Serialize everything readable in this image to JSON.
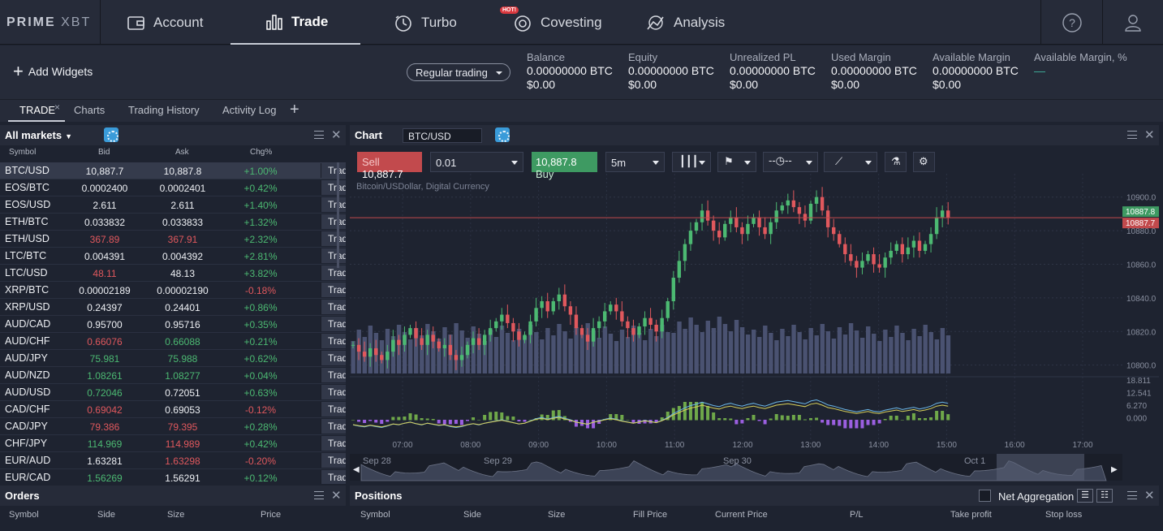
{
  "brand": {
    "logo_text_a": "PRIME",
    "logo_text_b": "XBT"
  },
  "nav": {
    "items": [
      {
        "label": "Account"
      },
      {
        "label": "Trade"
      },
      {
        "label": "Turbo"
      },
      {
        "label": "Covesting"
      },
      {
        "label": "Analysis"
      }
    ],
    "hot_badge": "HOT!"
  },
  "widgets": {
    "add_label": "Add Widgets",
    "mode": "Regular trading"
  },
  "stats": [
    {
      "label": "Balance",
      "btc": "0.00000000 BTC",
      "usd": "$0.00"
    },
    {
      "label": "Equity",
      "btc": "0.00000000 BTC",
      "usd": "$0.00"
    },
    {
      "label": "Unrealized PL",
      "btc": "0.00000000 BTC",
      "usd": "$0.00"
    },
    {
      "label": "Used Margin",
      "btc": "0.00000000 BTC",
      "usd": "$0.00"
    },
    {
      "label": "Available Margin",
      "btc": "0.00000000 BTC",
      "usd": "$0.00"
    },
    {
      "label": "Available Margin, %",
      "btc": "—",
      "usd": ""
    }
  ],
  "tabs": [
    "TRADE",
    "Charts",
    "Trading History",
    "Activity Log"
  ],
  "markets": {
    "title": "All markets",
    "columns": [
      "Symbol",
      "Bid",
      "Ask",
      "Chg%"
    ],
    "trade_label": "Trade",
    "rows": [
      {
        "symbol": "BTC/USD",
        "bid": "10,887.7",
        "ask": "10,887.8",
        "chg": "+1.00%",
        "bc": "wh",
        "ac": "wh",
        "cc": "up"
      },
      {
        "symbol": "EOS/BTC",
        "bid": "0.0002400",
        "ask": "0.0002401",
        "chg": "+0.42%",
        "bc": "wh",
        "ac": "wh",
        "cc": "up"
      },
      {
        "symbol": "EOS/USD",
        "bid": "2.611",
        "ask": "2.611",
        "chg": "+1.40%",
        "bc": "wh",
        "ac": "wh",
        "cc": "up"
      },
      {
        "symbol": "ETH/BTC",
        "bid": "0.033832",
        "ask": "0.033833",
        "chg": "+1.32%",
        "bc": "wh",
        "ac": "wh",
        "cc": "up"
      },
      {
        "symbol": "ETH/USD",
        "bid": "367.89",
        "ask": "367.91",
        "chg": "+2.32%",
        "bc": "dn",
        "ac": "dn",
        "cc": "up"
      },
      {
        "symbol": "LTC/BTC",
        "bid": "0.004391",
        "ask": "0.004392",
        "chg": "+2.81%",
        "bc": "wh",
        "ac": "wh",
        "cc": "up"
      },
      {
        "symbol": "LTC/USD",
        "bid": "48.11",
        "ask": "48.13",
        "chg": "+3.82%",
        "bc": "dn",
        "ac": "wh",
        "cc": "up"
      },
      {
        "symbol": "XRP/BTC",
        "bid": "0.00002189",
        "ask": "0.00002190",
        "chg": "-0.18%",
        "bc": "wh",
        "ac": "wh",
        "cc": "dn"
      },
      {
        "symbol": "XRP/USD",
        "bid": "0.24397",
        "ask": "0.24401",
        "chg": "+0.86%",
        "bc": "wh",
        "ac": "wh",
        "cc": "up"
      },
      {
        "symbol": "AUD/CAD",
        "bid": "0.95700",
        "ask": "0.95716",
        "chg": "+0.35%",
        "bc": "wh",
        "ac": "wh",
        "cc": "up"
      },
      {
        "symbol": "AUD/CHF",
        "bid": "0.66076",
        "ask": "0.66088",
        "chg": "+0.21%",
        "bc": "dn",
        "ac": "up",
        "cc": "up"
      },
      {
        "symbol": "AUD/JPY",
        "bid": "75.981",
        "ask": "75.988",
        "chg": "+0.62%",
        "bc": "up",
        "ac": "up",
        "cc": "up"
      },
      {
        "symbol": "AUD/NZD",
        "bid": "1.08261",
        "ask": "1.08277",
        "chg": "+0.04%",
        "bc": "up",
        "ac": "up",
        "cc": "up"
      },
      {
        "symbol": "AUD/USD",
        "bid": "0.72046",
        "ask": "0.72051",
        "chg": "+0.63%",
        "bc": "up",
        "ac": "wh",
        "cc": "up"
      },
      {
        "symbol": "CAD/CHF",
        "bid": "0.69042",
        "ask": "0.69053",
        "chg": "-0.12%",
        "bc": "dn",
        "ac": "wh",
        "cc": "dn"
      },
      {
        "symbol": "CAD/JPY",
        "bid": "79.386",
        "ask": "79.395",
        "chg": "+0.28%",
        "bc": "dn",
        "ac": "dn",
        "cc": "up"
      },
      {
        "symbol": "CHF/JPY",
        "bid": "114.969",
        "ask": "114.989",
        "chg": "+0.42%",
        "bc": "up",
        "ac": "dn",
        "cc": "up"
      },
      {
        "symbol": "EUR/AUD",
        "bid": "1.63281",
        "ask": "1.63298",
        "chg": "-0.20%",
        "bc": "wh",
        "ac": "dn",
        "cc": "dn"
      },
      {
        "symbol": "EUR/CAD",
        "bid": "1.56269",
        "ask": "1.56291",
        "chg": "+0.12%",
        "bc": "up",
        "ac": "wh",
        "cc": "up"
      }
    ]
  },
  "chart": {
    "title": "Chart",
    "symbol": "BTC/USD",
    "sell_label": "Sell",
    "sell_price": "10,887.7",
    "qty": "0.01",
    "buy_price": "10,887.8",
    "buy_label": "Buy",
    "interval": "5m",
    "description": "Bitcoin/USDollar, Digital Currency",
    "price_ticks": [
      "10900.0",
      "10880.0",
      "10860.0",
      "10840.0",
      "10820.0",
      "10800.0"
    ],
    "ask_tag": "10887.8",
    "bid_tag": "10887.7",
    "osc_ticks": [
      "18.811",
      "12.541",
      "6.270",
      "0.000"
    ],
    "time_ticks": [
      "07:00",
      "08:00",
      "09:00",
      "10:00",
      "11:00",
      "12:00",
      "13:00",
      "14:00",
      "15:00",
      "16:00",
      "17:00"
    ],
    "nav_dates": [
      "Sep 28",
      "Sep 29",
      "Sep 30",
      "Oct 1"
    ],
    "colors": {
      "up": "#4cb972",
      "down": "#e0585d",
      "volume": "#4a5271"
    }
  },
  "chart_data": {
    "type": "candlestick",
    "title": "Bitcoin/USDollar, Digital Currency",
    "x": [
      "06:30",
      "06:35",
      "06:40",
      "06:45",
      "06:50",
      "06:55",
      "07:00",
      "07:05",
      "07:10",
      "07:15",
      "07:20",
      "07:25",
      "07:30",
      "07:35",
      "07:40",
      "07:45",
      "07:50",
      "07:55",
      "08:00",
      "08:05",
      "08:10",
      "08:15",
      "08:20",
      "08:25",
      "08:30",
      "08:35",
      "08:40",
      "08:45",
      "08:50",
      "08:55",
      "09:00",
      "09:05",
      "09:10",
      "09:15",
      "09:20",
      "09:25",
      "09:30",
      "09:35",
      "09:40",
      "09:45",
      "09:50",
      "09:55",
      "10:00",
      "10:05",
      "10:10",
      "10:15",
      "10:20",
      "10:25",
      "10:30",
      "10:35",
      "10:40",
      "10:45",
      "10:50",
      "10:55",
      "11:00",
      "11:05",
      "11:10",
      "11:15",
      "11:20",
      "11:25",
      "11:30",
      "11:35",
      "11:40",
      "11:45",
      "11:50",
      "11:55",
      "12:00",
      "12:05",
      "12:10",
      "12:15",
      "12:20",
      "12:25",
      "12:30",
      "12:35",
      "12:40",
      "12:45",
      "12:50",
      "12:55",
      "13:00",
      "13:05",
      "13:10",
      "13:15",
      "13:20",
      "13:25",
      "13:30",
      "13:35",
      "13:40",
      "13:45",
      "13:50",
      "13:55",
      "14:00",
      "14:05",
      "14:10",
      "14:15",
      "14:20",
      "14:25",
      "14:30",
      "14:35",
      "14:40",
      "14:45",
      "14:50",
      "14:55",
      "15:00",
      "15:05",
      "15:10"
    ],
    "close": [
      10812,
      10808,
      10805,
      10810,
      10806,
      10803,
      10808,
      10815,
      10812,
      10818,
      10822,
      10816,
      10812,
      10818,
      10814,
      10810,
      10812,
      10806,
      10803,
      10806,
      10812,
      10816,
      10812,
      10818,
      10822,
      10826,
      10830,
      10825,
      10820,
      10815,
      10818,
      10826,
      10834,
      10838,
      10832,
      10838,
      10842,
      10835,
      10830,
      10822,
      10818,
      10814,
      10822,
      10826,
      10832,
      10836,
      10832,
      10826,
      10822,
      10818,
      10823,
      10828,
      10824,
      10820,
      10828,
      10838,
      10852,
      10862,
      10872,
      10880,
      10885,
      10892,
      10886,
      10880,
      10876,
      10884,
      10888,
      10882,
      10878,
      10884,
      10888,
      10882,
      10878,
      10885,
      10892,
      10895,
      10898,
      10894,
      10890,
      10886,
      10896,
      10900,
      10892,
      10882,
      10878,
      10872,
      10866,
      10862,
      10858,
      10862,
      10866,
      10860,
      10858,
      10864,
      10868,
      10872,
      10866,
      10870,
      10874,
      10868,
      10872,
      10878,
      10888,
      10892,
      10887.7
    ],
    "ylim": [
      10795,
      10910
    ]
  }
}
